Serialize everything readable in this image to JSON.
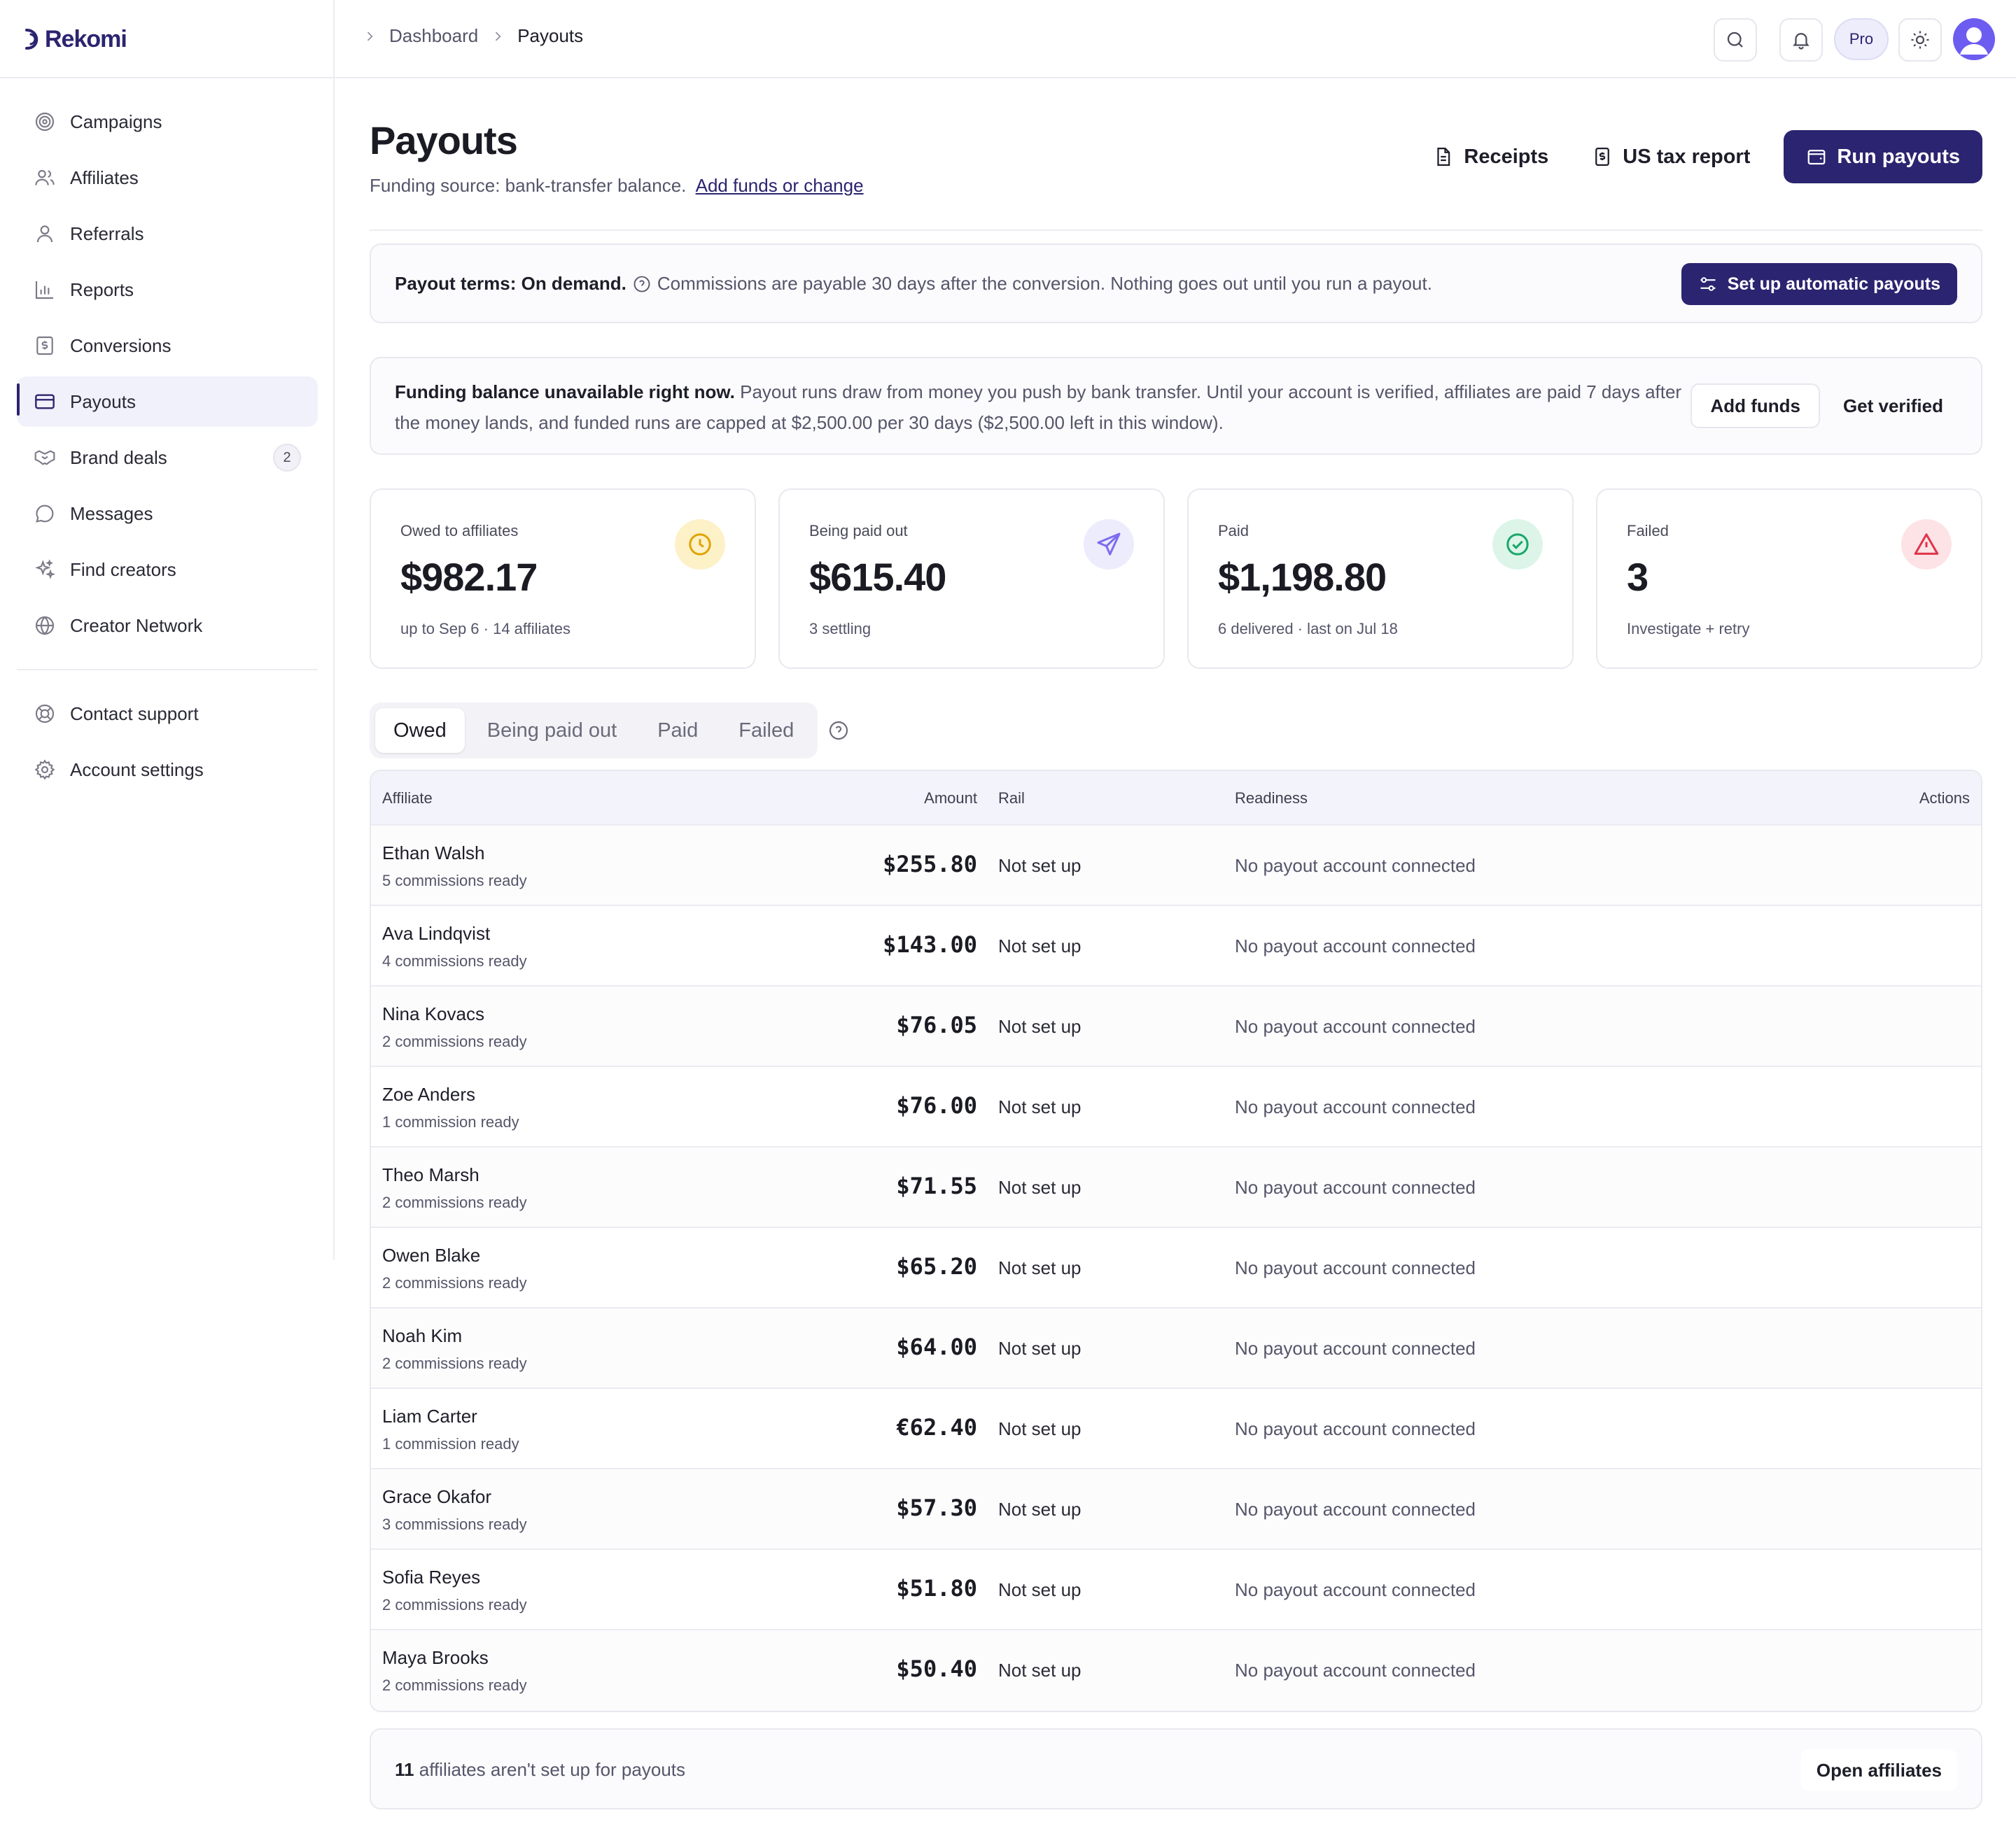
{
  "brand": {
    "name": "Rekomi"
  },
  "sidebar": {
    "items": [
      {
        "label": "Campaigns",
        "icon": "target-icon"
      },
      {
        "label": "Affiliates",
        "icon": "users-icon"
      },
      {
        "label": "Referrals",
        "icon": "user-icon"
      },
      {
        "label": "Reports",
        "icon": "bar-chart-icon"
      },
      {
        "label": "Conversions",
        "icon": "receipt-icon"
      },
      {
        "label": "Payouts",
        "icon": "credit-card-icon",
        "active": true
      },
      {
        "label": "Brand deals",
        "icon": "handshake-icon",
        "badge": "2"
      },
      {
        "label": "Messages",
        "icon": "message-icon"
      },
      {
        "label": "Find creators",
        "icon": "sparkles-icon"
      },
      {
        "label": "Creator Network",
        "icon": "globe-icon"
      }
    ],
    "bottom": [
      {
        "label": "Contact support",
        "icon": "lifebuoy-icon"
      },
      {
        "label": "Account settings",
        "icon": "gear-icon"
      }
    ]
  },
  "topbar": {
    "breadcrumb": [
      "Dashboard",
      "Payouts"
    ],
    "plan": "Pro"
  },
  "header": {
    "title": "Payouts",
    "funding_text": "Funding source: bank-transfer balance.",
    "funding_link": "Add funds or change",
    "receipts_label": "Receipts",
    "tax_label": "US tax report",
    "run_label": "Run payouts"
  },
  "terms": {
    "bold": "Payout terms: On demand.",
    "text": "Commissions are payable 30 days after the conversion. Nothing goes out until you run a payout.",
    "button": "Set up automatic payouts"
  },
  "funding": {
    "bold": "Funding balance unavailable right now.",
    "text": "Payout runs draw from money you push by bank transfer. Until your account is verified, affiliates are paid 7 days after the money lands, and funded runs are capped at $2,500.00 per 30 days ($2,500.00 left in this window).",
    "add_funds": "Add funds",
    "verify": "Get verified"
  },
  "cards": [
    {
      "label": "Owed to affiliates",
      "value": "$982.17",
      "sub": "up to Sep 6 · 14 affiliates",
      "icon": "clock-icon",
      "color": "#e0a400"
    },
    {
      "label": "Being paid out",
      "value": "$615.40",
      "sub": "3 settling",
      "icon": "send-icon",
      "color": "#7b6cf0"
    },
    {
      "label": "Paid",
      "value": "$1,198.80",
      "sub": "6 delivered · last on Jul 18",
      "icon": "check-circle-icon",
      "color": "#1aa66a"
    },
    {
      "label": "Failed",
      "value": "3",
      "sub": "Investigate + retry",
      "icon": "alert-triangle-icon",
      "color": "#e0344c"
    }
  ],
  "tabs": [
    "Owed",
    "Being paid out",
    "Paid",
    "Failed"
  ],
  "table": {
    "columns": [
      "Affiliate",
      "Amount",
      "Rail",
      "Readiness",
      "Actions"
    ],
    "rows": [
      {
        "name": "Ethan Walsh",
        "sub": "5 commissions ready",
        "amount": "$255.80",
        "rail": "Not set up",
        "readiness": "No payout account connected"
      },
      {
        "name": "Ava Lindqvist",
        "sub": "4 commissions ready",
        "amount": "$143.00",
        "rail": "Not set up",
        "readiness": "No payout account connected"
      },
      {
        "name": "Nina Kovacs",
        "sub": "2 commissions ready",
        "amount": "$76.05",
        "rail": "Not set up",
        "readiness": "No payout account connected"
      },
      {
        "name": "Zoe Anders",
        "sub": "1 commission ready",
        "amount": "$76.00",
        "rail": "Not set up",
        "readiness": "No payout account connected"
      },
      {
        "name": "Theo Marsh",
        "sub": "2 commissions ready",
        "amount": "$71.55",
        "rail": "Not set up",
        "readiness": "No payout account connected"
      },
      {
        "name": "Owen Blake",
        "sub": "2 commissions ready",
        "amount": "$65.20",
        "rail": "Not set up",
        "readiness": "No payout account connected"
      },
      {
        "name": "Noah Kim",
        "sub": "2 commissions ready",
        "amount": "$64.00",
        "rail": "Not set up",
        "readiness": "No payout account connected"
      },
      {
        "name": "Liam Carter",
        "sub": "1 commission ready",
        "amount": "€62.40",
        "rail": "Not set up",
        "readiness": "No payout account connected"
      },
      {
        "name": "Grace Okafor",
        "sub": "3 commissions ready",
        "amount": "$57.30",
        "rail": "Not set up",
        "readiness": "No payout account connected"
      },
      {
        "name": "Sofia Reyes",
        "sub": "2 commissions ready",
        "amount": "$51.80",
        "rail": "Not set up",
        "readiness": "No payout account connected"
      },
      {
        "name": "Maya Brooks",
        "sub": "2 commissions ready",
        "amount": "$50.40",
        "rail": "Not set up",
        "readiness": "No payout account connected"
      }
    ]
  },
  "footer": {
    "count": "11",
    "text": "affiliates aren't set up for payouts",
    "button": "Open affiliates"
  }
}
